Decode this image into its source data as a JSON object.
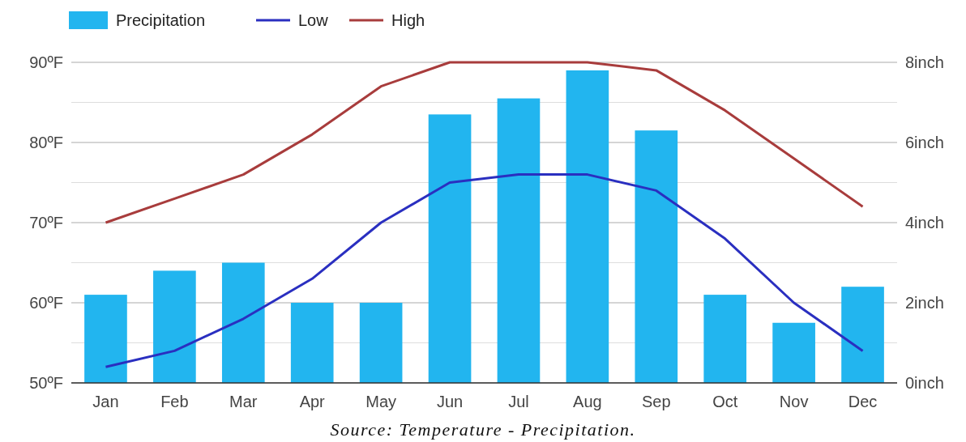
{
  "chart_data": {
    "type": "bar",
    "categories": [
      "Jan",
      "Feb",
      "Mar",
      "Apr",
      "May",
      "Jun",
      "Jul",
      "Aug",
      "Sep",
      "Oct",
      "Nov",
      "Dec"
    ],
    "series": [
      {
        "name": "Precipitation",
        "axis": "y2",
        "color": "#22b5ef",
        "values": [
          2.2,
          2.8,
          3.0,
          2.0,
          2.0,
          6.7,
          7.1,
          7.8,
          6.3,
          2.2,
          1.5,
          2.4
        ]
      },
      {
        "name": "Low",
        "type": "line",
        "color": "#2a2fc0",
        "values": [
          52,
          54,
          58,
          63,
          70,
          75,
          76,
          76,
          74,
          68,
          60,
          54
        ]
      },
      {
        "name": "High",
        "type": "line",
        "color": "#a83c3c",
        "values": [
          70,
          73,
          76,
          81,
          87,
          90,
          90,
          90,
          89,
          84,
          78,
          72
        ]
      }
    ],
    "ylim": [
      50,
      90
    ],
    "yticks": [
      {
        "value": 50,
        "label": "50ºF"
      },
      {
        "value": 55,
        "label": null
      },
      {
        "value": 60,
        "label": "60ºF"
      },
      {
        "value": 65,
        "label": null
      },
      {
        "value": 70,
        "label": "70ºF"
      },
      {
        "value": 75,
        "label": null
      },
      {
        "value": 80,
        "label": "80ºF"
      },
      {
        "value": 85,
        "label": null
      },
      {
        "value": 90,
        "label": "90ºF"
      }
    ],
    "y2lim": [
      0,
      8
    ],
    "y2ticks": [
      {
        "value": 0,
        "label": "0inch"
      },
      {
        "value": 2,
        "label": "2inch"
      },
      {
        "value": 4,
        "label": "4inch"
      },
      {
        "value": 6,
        "label": "6inch"
      },
      {
        "value": 8,
        "label": "8inch"
      }
    ],
    "grid": "y",
    "legend": "top left",
    "marker": "none",
    "annotations": [
      "Source: Temperature - Precipitation."
    ]
  }
}
